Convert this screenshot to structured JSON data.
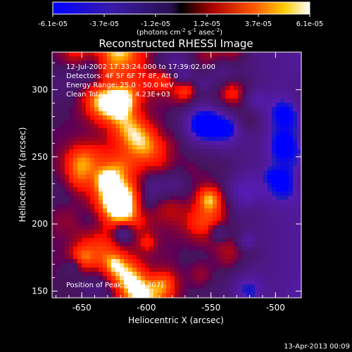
{
  "colorbar": {
    "ticks": [
      "-6.1e-05",
      "-3.7e-05",
      "-1.2e-05",
      "1.2e-05",
      "3.7e-05",
      "6.1e-05"
    ],
    "units_main": "(photons cm",
    "units_exp1": "-2",
    "units_mid": " s",
    "units_exp2": "-1",
    "units_end": " asec",
    "units_exp3": "-2",
    "units_close": ")"
  },
  "info": {
    "line1": "12-Jul-2002 17:33:24.000 to 17:39:02.000",
    "line2": "Detectors: 4F 5F 6F 7F 8F, Att 0",
    "line3": "Energy Range: 25.0 - 50.0 keV",
    "line4": "Clean     Total counts: 4.23E+03",
    "peak": "Position of Peak: [-593,207]"
  },
  "footer": {
    "timestamp": "13-Apr-2013 00:09"
  },
  "chart_data": {
    "type": "heatmap",
    "title": "Reconstructed RHESSI Image",
    "xlabel": "Heliocentric X (arcsec)",
    "ylabel": "Heliocentric Y (arcsec)",
    "xlim": [
      -673,
      -480
    ],
    "ylim": [
      145,
      328
    ],
    "xticks": [
      -650,
      -600,
      -550,
      -500
    ],
    "yticks": [
      150,
      200,
      250,
      300
    ],
    "colorbar_range": [
      -6.1e-05,
      6.1e-05
    ],
    "peak": {
      "x": -593,
      "y": 207
    },
    "bright_region_x_range": [
      -655,
      -580
    ],
    "colors": {
      "neg_extreme": "#0000ff",
      "mid": "#000000",
      "pos_low": "#aa0000",
      "pos_mid": "#ff8800",
      "pos_extreme": "#ffffff"
    }
  }
}
